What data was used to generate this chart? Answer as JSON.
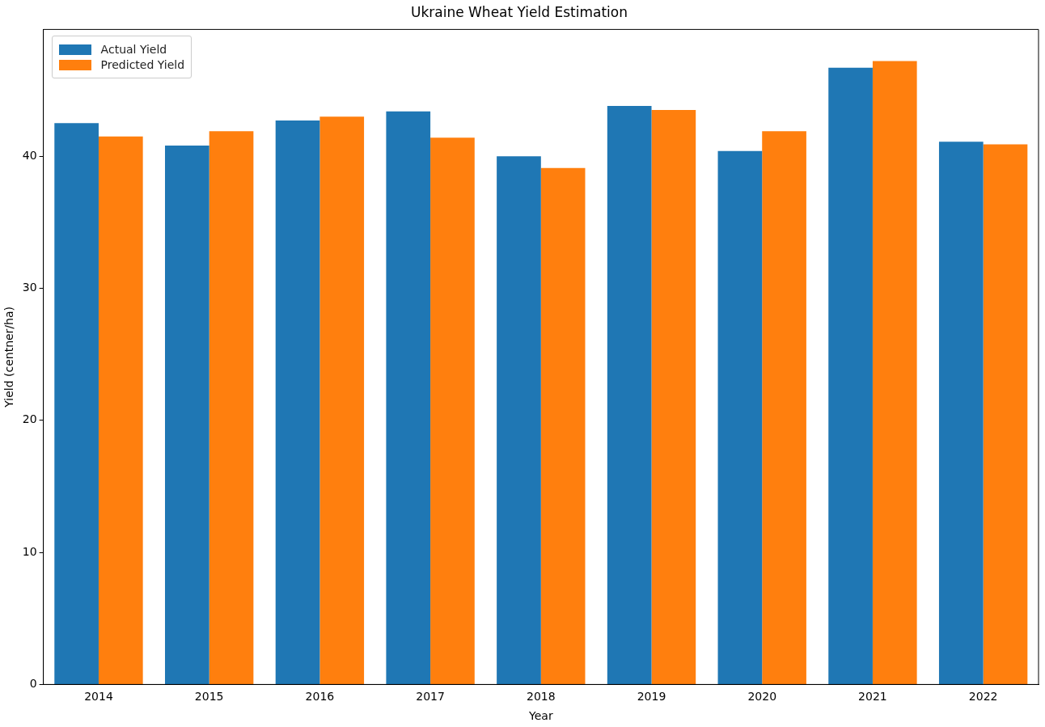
{
  "chart_data": {
    "type": "bar",
    "title": "Ukraine Wheat Yield Estimation",
    "xlabel": "Year",
    "ylabel": "Yield (centner/ha)",
    "categories": [
      "2014",
      "2015",
      "2016",
      "2017",
      "2018",
      "2019",
      "2020",
      "2021",
      "2022"
    ],
    "series": [
      {
        "name": "Actual Yield",
        "color": "#1f77b4",
        "values": [
          42.5,
          40.8,
          42.7,
          43.4,
          40.0,
          43.8,
          40.4,
          46.7,
          41.1
        ]
      },
      {
        "name": "Predicted Yield",
        "color": "#ff7f0e",
        "values": [
          41.5,
          41.9,
          43.0,
          41.4,
          39.1,
          43.5,
          41.9,
          47.2,
          40.9
        ]
      }
    ],
    "ylim": [
      0,
      49.6
    ],
    "yticks": [
      0,
      10,
      20,
      30,
      40
    ],
    "grid": false,
    "legend": "top left"
  }
}
